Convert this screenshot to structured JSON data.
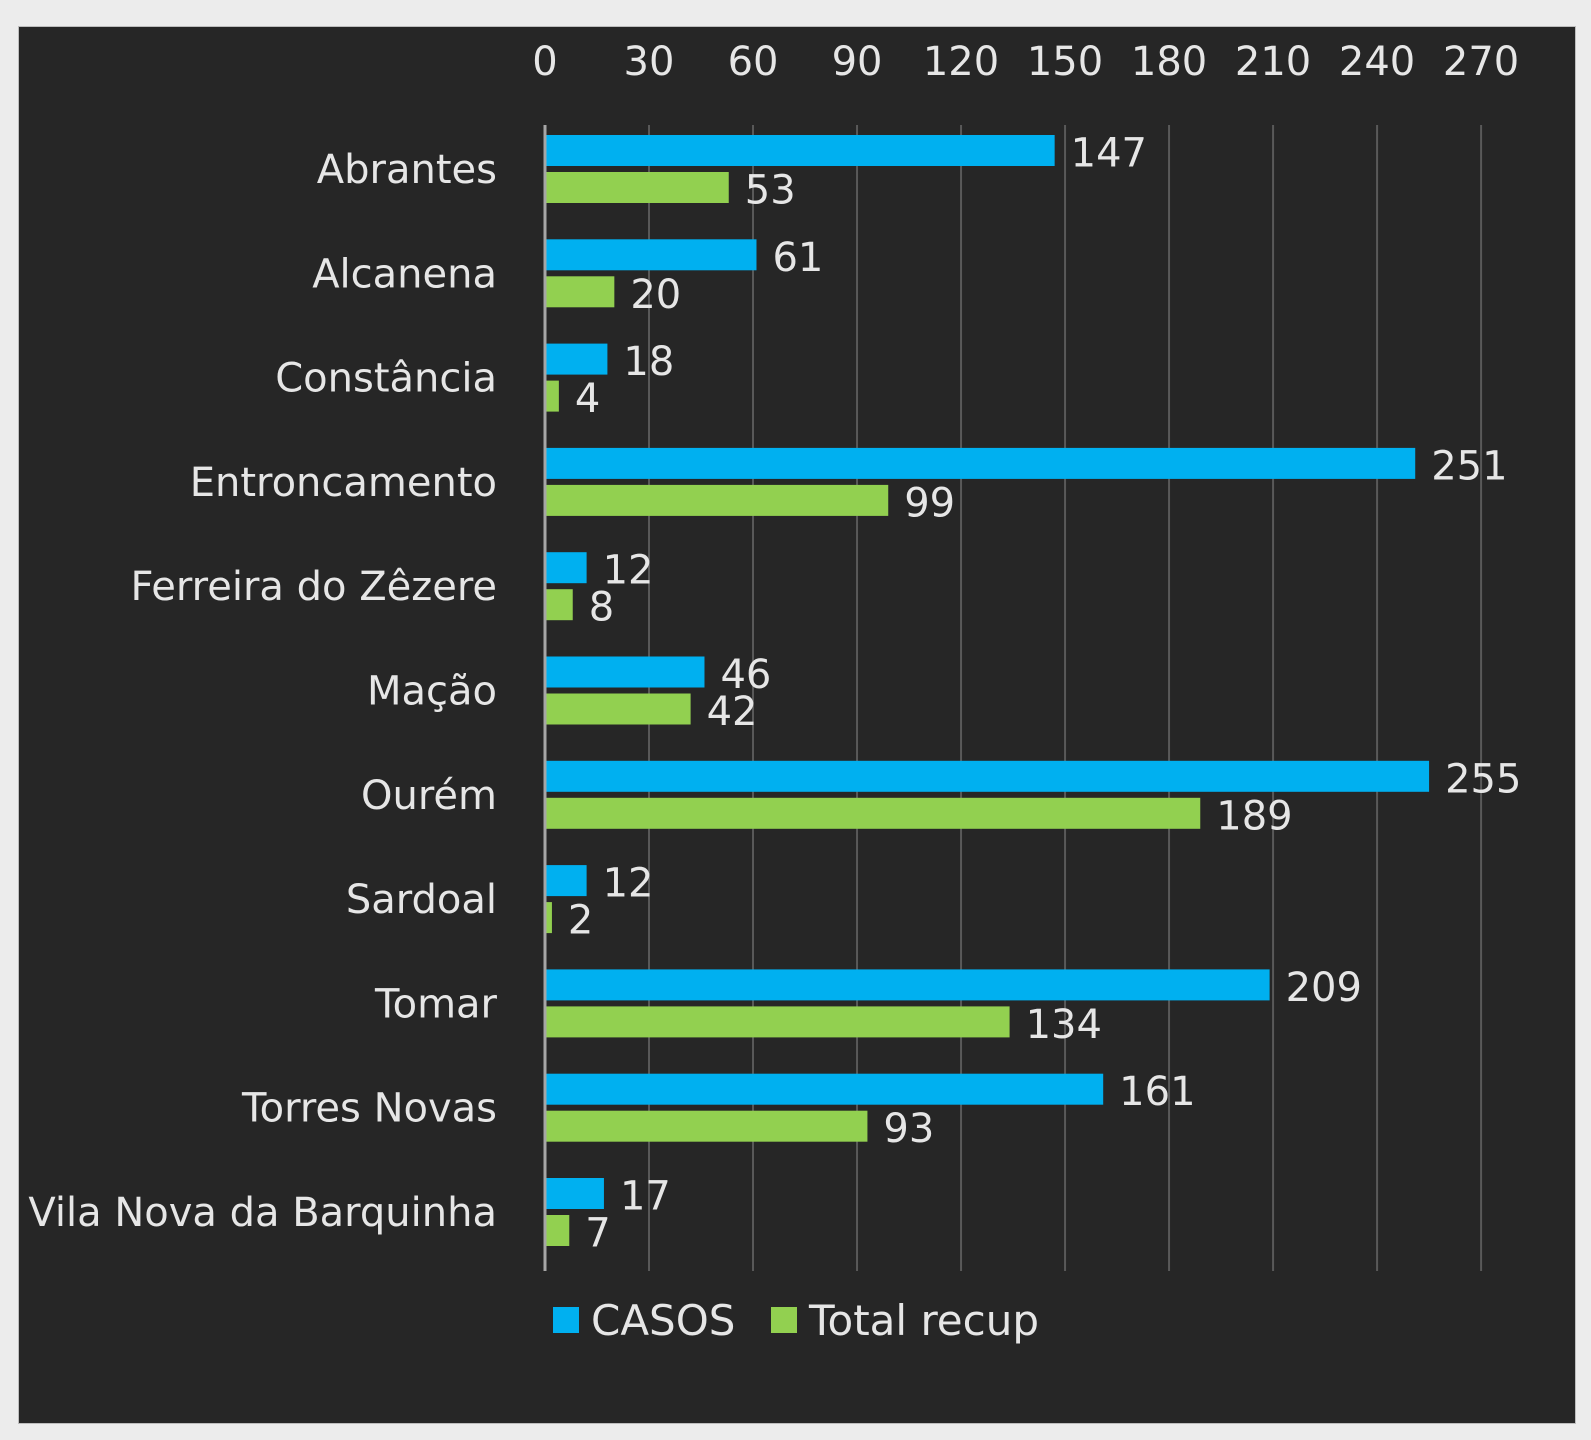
{
  "chart_data": {
    "type": "bar",
    "orientation": "horizontal",
    "title": "",
    "xlabel": "",
    "ylabel": "",
    "xlim": [
      0,
      270
    ],
    "x_ticks": [
      "0",
      "30",
      "60",
      "90",
      "120",
      "150",
      "180",
      "210",
      "240",
      "270"
    ],
    "axis_position": "top",
    "grid": true,
    "legend_position": "bottom",
    "categories": [
      "Abrantes",
      "Alcanena",
      "Constância",
      "Entroncamento",
      "Ferreira do Zêzere",
      "Mação",
      "Ourém",
      "Sardoal",
      "Tomar",
      "Torres Novas",
      "Vila Nova da Barquinha"
    ],
    "series": [
      {
        "name": "CASOS",
        "color": "#00b0f0",
        "values": [
          147,
          61,
          18,
          251,
          12,
          46,
          255,
          12,
          209,
          161,
          17
        ]
      },
      {
        "name": "Total recup",
        "color": "#92d050",
        "values": [
          53,
          20,
          4,
          99,
          8,
          42,
          189,
          2,
          134,
          93,
          7
        ]
      }
    ]
  },
  "colors": {
    "background": "#262626",
    "gridline": "#595959",
    "axis_line": "#a6a6a6",
    "text": "#e6e6e6"
  }
}
